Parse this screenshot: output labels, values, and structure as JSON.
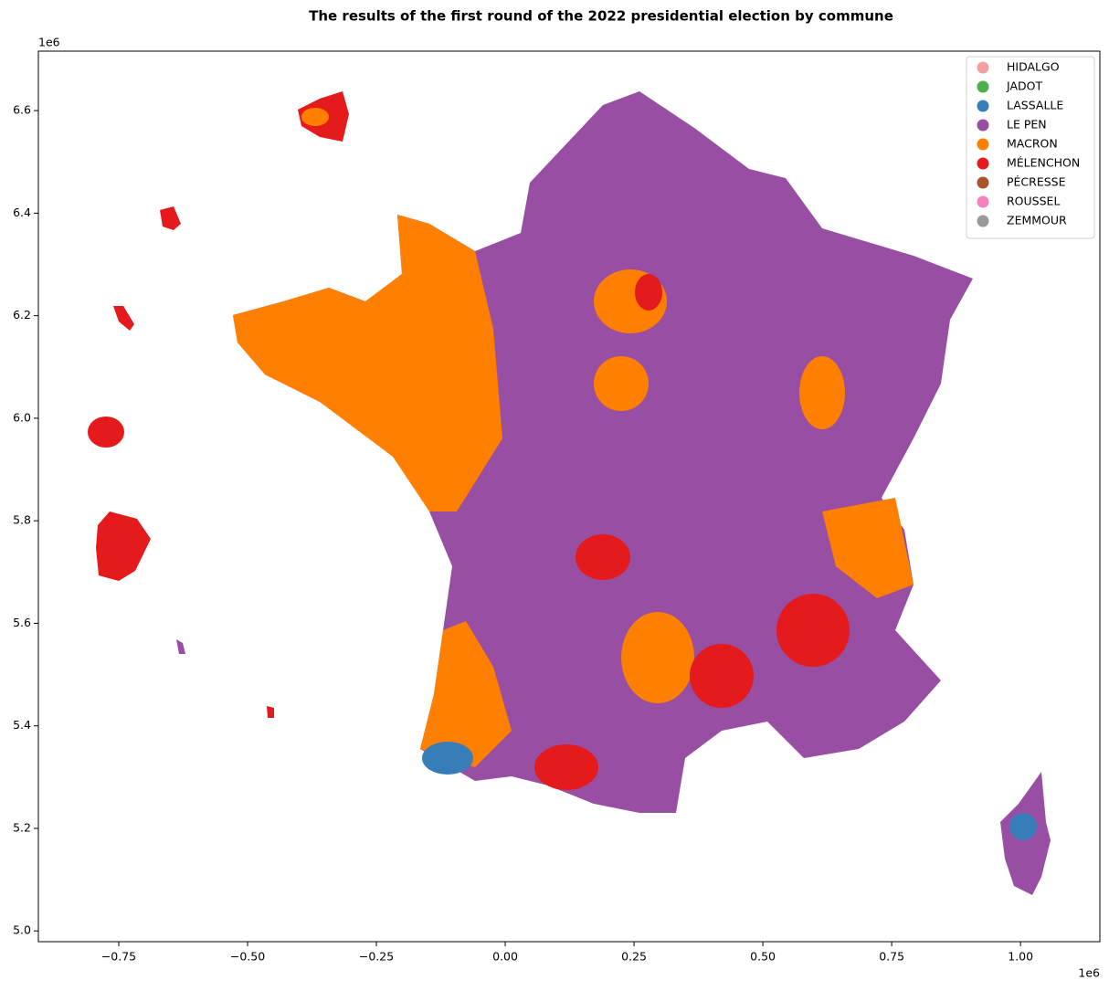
{
  "chart_data": {
    "type": "map",
    "title": "The results of the first round of the 2022 presidential election by commune",
    "xlim": [
      -0.906,
      1.154
    ],
    "ylim": [
      4.979,
      6.716
    ],
    "xticks": [
      {
        "value": -0.75,
        "label": "−0.75"
      },
      {
        "value": -0.5,
        "label": "−0.50"
      },
      {
        "value": -0.25,
        "label": "−0.25"
      },
      {
        "value": 0,
        "label": "0.00"
      },
      0.25,
      {
        "value": 0.5,
        "label": "0.50"
      },
      0.75,
      {
        "value": 1,
        "label": "1.00"
      }
    ],
    "yticks": [
      {
        "value": 5,
        "label": "5.0"
      },
      5.2,
      5.4,
      5.6,
      5.8,
      {
        "value": 6,
        "label": "6.0"
      },
      6.2,
      6.4,
      6.6
    ],
    "x_offset": "1e6",
    "y_offset": "1e6",
    "legend_loc": "upper right",
    "series": [
      {
        "name": "HIDALGO",
        "color": "#f4a0a0"
      },
      {
        "name": "JADOT",
        "color": "#4daf4a"
      },
      {
        "name": "LASSALLE",
        "color": "#377eb8"
      },
      {
        "name": "LE PEN",
        "color": "#984ea3"
      },
      {
        "name": "MACRON",
        "color": "#ff7f00"
      },
      {
        "name": "MÉLENCHON",
        "color": "#e41a1c"
      },
      {
        "name": "PÉCRESSE",
        "color": "#a65628"
      },
      {
        "name": "ROUSSEL",
        "color": "#f781bf"
      },
      {
        "name": "ZEMMOUR",
        "color": "#999999"
      }
    ]
  }
}
